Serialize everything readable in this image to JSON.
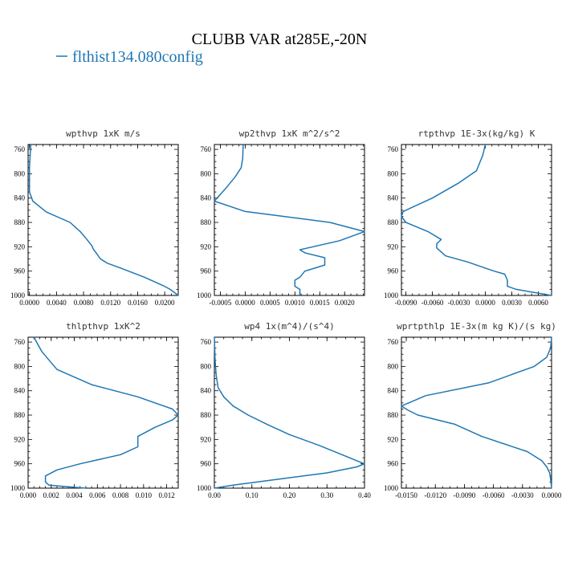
{
  "figure": {
    "title": "CLUBB VAR at285E,-20N",
    "legend": {
      "label": "flthist134.080config",
      "color": "#1f77b4"
    }
  },
  "chart_data": [
    {
      "type": "line",
      "title": "wpthvp  1xK m/s",
      "series": [
        {
          "name": "flthist134.080config",
          "color": "#1f77b4",
          "x": [
            0.0002,
            0.0001,
            0.0,
            0.0,
            0.0,
            0.0005,
            0.0025,
            0.006,
            0.0075,
            0.0085,
            0.0092,
            0.0095,
            0.01,
            0.0105,
            0.0115,
            0.0135,
            0.017,
            0.0198,
            0.0208,
            0.022
          ],
          "y": [
            752,
            770,
            790,
            810,
            830,
            845,
            863,
            880,
            895,
            908,
            918,
            925,
            932,
            940,
            947,
            955,
            970,
            984,
            990,
            1000
          ]
        }
      ],
      "xticks": [
        "0.0000",
        "0.0040",
        "0.0080",
        "0.0120",
        "0.0160",
        "0.0200"
      ],
      "xtick_values": [
        0,
        0.004,
        0.008,
        0.012,
        0.016,
        0.02
      ],
      "xlim": [
        -0.0002,
        0.022
      ],
      "yticks": [
        "760",
        "800",
        "840",
        "880",
        "920",
        "960",
        "1000"
      ],
      "ylim": [
        752,
        1000
      ],
      "yaxis": "inverted"
    },
    {
      "type": "line",
      "title": "wp2thvp  1xK m^2/s^2",
      "series": [
        {
          "name": "flthist134.080config",
          "color": "#1f77b4",
          "x": [
            -4e-05,
            -5e-05,
            -8e-05,
            -0.0002,
            -0.0004,
            -0.00062,
            0.0,
            0.0017,
            0.0024,
            0.0019,
            0.0011,
            0.0012,
            0.0016,
            0.0016,
            0.0012,
            0.0011,
            0.001,
            0.001,
            0.0011,
            0.0011
          ],
          "y": [
            752,
            775,
            790,
            805,
            825,
            845,
            862,
            880,
            895,
            910,
            925,
            930,
            938,
            950,
            960,
            970,
            975,
            985,
            990,
            1000
          ]
        }
      ],
      "xticks": [
        "-0.0005",
        "0.0000",
        "0.0005",
        "0.0010",
        "0.0015",
        "0.0020"
      ],
      "xtick_values": [
        -0.0005,
        0,
        0.0005,
        0.001,
        0.0015,
        0.002
      ],
      "xlim": [
        -0.00062,
        0.0024
      ],
      "yticks": [
        "760",
        "800",
        "840",
        "880",
        "920",
        "960",
        "1000"
      ],
      "ylim": [
        752,
        1000
      ],
      "yaxis": "inverted"
    },
    {
      "type": "line",
      "title": "rtpthvp  1E-3x(kg/kg) K",
      "series": [
        {
          "name": "flthist134.080config",
          "color": "#1f77b4",
          "x": [
            0.0,
            -0.0003,
            -0.001,
            -0.003,
            -0.006,
            -0.0093,
            -0.0095,
            -0.009,
            -0.0065,
            -0.005,
            -0.0055,
            -0.0055,
            -0.0045,
            -0.002,
            0.0,
            0.001,
            0.0022,
            0.0025,
            0.0025,
            0.0035,
            0.0055,
            0.0075
          ],
          "y": [
            752,
            770,
            795,
            815,
            840,
            862,
            870,
            880,
            895,
            908,
            915,
            922,
            935,
            945,
            955,
            960,
            965,
            975,
            985,
            990,
            995,
            1000
          ]
        }
      ],
      "xticks": [
        "-0.0090",
        "-0.0060",
        "-0.0030",
        "0.0000",
        "0.0030",
        "0.0060"
      ],
      "xtick_values": [
        -0.009,
        -0.006,
        -0.003,
        0,
        0.003,
        0.006
      ],
      "xlim": [
        -0.0095,
        0.0075
      ],
      "yticks": [
        "760",
        "800",
        "840",
        "880",
        "920",
        "960",
        "1000"
      ],
      "ylim": [
        752,
        1000
      ],
      "yaxis": "inverted"
    },
    {
      "type": "line",
      "title": "thlpthvp  1xK^2",
      "series": [
        {
          "name": "flthist134.080config",
          "color": "#1f77b4",
          "x": [
            0.0005,
            0.0012,
            0.0025,
            0.0055,
            0.0095,
            0.0125,
            0.013,
            0.0125,
            0.011,
            0.0095,
            0.0095,
            0.008,
            0.0045,
            0.0025,
            0.0015,
            0.0015,
            0.0018,
            0.003,
            0.005
          ],
          "y": [
            752,
            776,
            805,
            830,
            850,
            870,
            880,
            888,
            900,
            915,
            932,
            945,
            960,
            970,
            980,
            990,
            995,
            997,
            1000
          ]
        }
      ],
      "xticks": [
        "0.000",
        "0.002",
        "0.004",
        "0.006",
        "0.008",
        "0.010",
        "0.012"
      ],
      "xtick_values": [
        0,
        0.002,
        0.004,
        0.006,
        0.008,
        0.01,
        0.012
      ],
      "xlim": [
        0,
        0.013
      ],
      "yticks": [
        "760",
        "800",
        "840",
        "880",
        "920",
        "960",
        "1000"
      ],
      "ylim": [
        752,
        1000
      ],
      "yaxis": "inverted"
    },
    {
      "type": "line",
      "title": "wp4  1x(m^4)/(s^4)",
      "series": [
        {
          "name": "flthist134.080config",
          "color": "#1f77b4",
          "x": [
            0.0,
            0.002,
            0.005,
            0.01,
            0.025,
            0.05,
            0.09,
            0.14,
            0.2,
            0.28,
            0.34,
            0.38,
            0.4,
            0.38,
            0.3,
            0.15,
            0.05,
            0.01,
            0.0
          ],
          "y": [
            752,
            790,
            815,
            835,
            850,
            865,
            880,
            895,
            912,
            930,
            945,
            955,
            960,
            965,
            975,
            987,
            995,
            999,
            1000
          ]
        }
      ],
      "xticks": [
        "0.00",
        "0.10",
        "0.20",
        "0.30",
        "0.40"
      ],
      "xtick_values": [
        0,
        0.1,
        0.2,
        0.3,
        0.4
      ],
      "xlim": [
        0,
        0.4
      ],
      "yticks": [
        "760",
        "800",
        "840",
        "880",
        "920",
        "960",
        "1000"
      ],
      "ylim": [
        752,
        1000
      ],
      "yaxis": "inverted"
    },
    {
      "type": "line",
      "title": "wprtpthlp  1E-3x(m kg K)/(s kg)",
      "series": [
        {
          "name": "flthist134.080config",
          "color": "#1f77b4",
          "x": [
            0.0,
            -0.0001,
            -0.0005,
            -0.0018,
            -0.0065,
            -0.013,
            -0.0155,
            -0.0148,
            -0.0138,
            -0.01,
            -0.0072,
            -0.0025,
            -0.001,
            -0.0005,
            -0.0002,
            -0.0001,
            0.0
          ],
          "y": [
            752,
            770,
            785,
            800,
            827,
            848,
            865,
            872,
            880,
            895,
            915,
            940,
            955,
            965,
            975,
            985,
            1000
          ]
        }
      ],
      "xticks": [
        "-0.0150",
        "-0.0120",
        "-0.0090",
        "-0.0060",
        "-0.0030",
        "0.0000"
      ],
      "xtick_values": [
        -0.015,
        -0.012,
        -0.009,
        -0.006,
        -0.003,
        0
      ],
      "xlim": [
        -0.0155,
        0.0
      ],
      "yticks": [
        "760",
        "800",
        "840",
        "880",
        "920",
        "960",
        "1000"
      ],
      "ylim": [
        752,
        1000
      ],
      "yaxis": "inverted"
    }
  ]
}
